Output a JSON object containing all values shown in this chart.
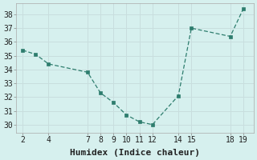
{
  "x": [
    2,
    3,
    4,
    7,
    8,
    9,
    10,
    11,
    12,
    14,
    15,
    18,
    19
  ],
  "y": [
    35.4,
    35.1,
    34.4,
    33.8,
    32.3,
    31.6,
    30.7,
    30.2,
    30.0,
    32.1,
    37.0,
    36.4,
    38.4
  ],
  "line_color": "#2e7d6e",
  "bg_color": "#d6f0ee",
  "grid_color": "#c8dede",
  "xlabel": "Humidex (Indice chaleur)",
  "xticks": [
    2,
    4,
    7,
    8,
    9,
    10,
    11,
    12,
    14,
    15,
    18,
    19
  ],
  "yticks": [
    30,
    31,
    32,
    33,
    34,
    35,
    36,
    37,
    38
  ],
  "xlim": [
    1.5,
    19.8
  ],
  "ylim": [
    29.4,
    38.8
  ],
  "xlabel_fontsize": 8,
  "tick_fontsize": 7
}
